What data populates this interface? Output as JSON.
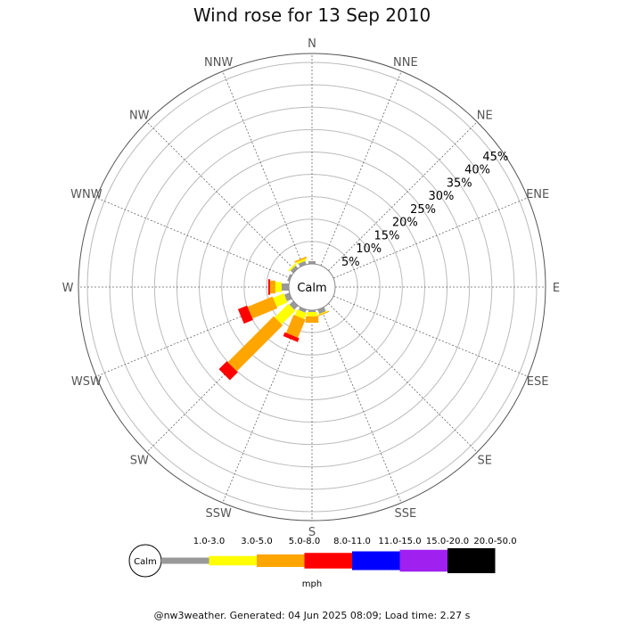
{
  "chart_data": {
    "type": "windrose",
    "title": "Wind rose for 13 Sep 2010",
    "calm_label": "Calm",
    "directions": [
      "N",
      "NNE",
      "NE",
      "ENE",
      "E",
      "ESE",
      "SE",
      "SSE",
      "S",
      "SSW",
      "SW",
      "WSW",
      "W",
      "WNW",
      "NW",
      "NNW"
    ],
    "ring_labels": [
      "5%",
      "10%",
      "15%",
      "20%",
      "25%",
      "30%",
      "35%",
      "40%",
      "45%"
    ],
    "ring_values": [
      5,
      10,
      15,
      20,
      25,
      30,
      35,
      40,
      45
    ],
    "rmax": 47,
    "unit": "mph",
    "speed_bins": [
      {
        "label": "1.0-3.0",
        "color": "#999999"
      },
      {
        "label": "3.0-5.0",
        "color": "#ffff00"
      },
      {
        "label": "5.0-8.0",
        "color": "#ffa500"
      },
      {
        "label": "8.0-11.0",
        "color": "#ff0000"
      },
      {
        "label": "11.0-15.0",
        "color": "#0000ff"
      },
      {
        "label": "15.0-20.0",
        "color": "#a020f0"
      },
      {
        "label": "20.0-50.0",
        "color": "#000000"
      }
    ],
    "series": [
      {
        "direction": "N",
        "values": [
          0.6,
          0,
          0,
          0,
          0,
          0,
          0
        ]
      },
      {
        "direction": "NNE",
        "values": [
          0,
          0,
          0,
          0,
          0,
          0,
          0
        ]
      },
      {
        "direction": "NE",
        "values": [
          0,
          0,
          0,
          0,
          0,
          0,
          0
        ]
      },
      {
        "direction": "ENE",
        "values": [
          0,
          0,
          0,
          0,
          0,
          0,
          0
        ]
      },
      {
        "direction": "E",
        "values": [
          0,
          0,
          0,
          0,
          0,
          0,
          0
        ]
      },
      {
        "direction": "ESE",
        "values": [
          0,
          0,
          0,
          0,
          0,
          0,
          0
        ]
      },
      {
        "direction": "SE",
        "values": [
          0,
          0,
          0,
          0,
          0,
          0,
          0
        ]
      },
      {
        "direction": "SSE",
        "values": [
          1.0,
          0.2,
          0.2,
          0,
          0,
          0,
          0
        ]
      },
      {
        "direction": "S",
        "values": [
          0.4,
          1.0,
          1.4,
          0,
          0,
          0,
          0
        ]
      },
      {
        "direction": "SSW",
        "values": [
          0.7,
          1.4,
          4.4,
          0.9,
          0,
          0,
          0
        ]
      },
      {
        "direction": "SW",
        "values": [
          1.2,
          4.3,
          14.5,
          2.5,
          0,
          0,
          0
        ]
      },
      {
        "direction": "WSW",
        "values": [
          1.2,
          2.6,
          6.0,
          2.2,
          0,
          0,
          0
        ]
      },
      {
        "direction": "W",
        "values": [
          1.6,
          1.4,
          1.2,
          0.4,
          0,
          0,
          0
        ]
      },
      {
        "direction": "WNW",
        "values": [
          0.5,
          0,
          0,
          0,
          0,
          0,
          0
        ]
      },
      {
        "direction": "NW",
        "values": [
          0.8,
          0.4,
          0,
          0,
          0,
          0,
          0
        ]
      },
      {
        "direction": "NNW",
        "values": [
          0.8,
          0.5,
          0.3,
          0,
          0,
          0,
          0
        ]
      }
    ]
  },
  "footer": "@nw3weather. Generated: 04 Jun 2025 08:09; Load time: 2.27 s"
}
